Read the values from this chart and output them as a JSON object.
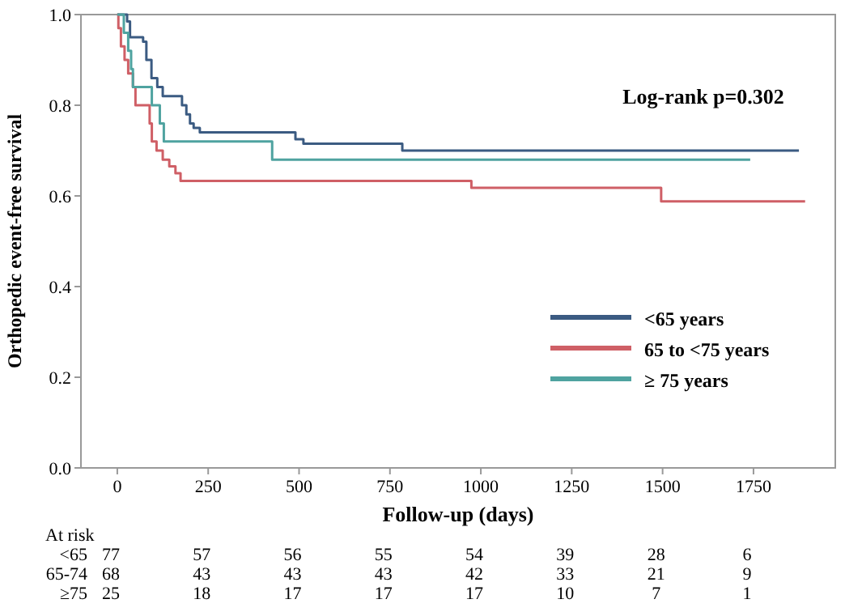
{
  "chart_data": {
    "type": "step",
    "xlabel": "Follow-up (days)",
    "ylabel": "Orthopedic event-free survival",
    "xlim": [
      -100,
      1975
    ],
    "ylim": [
      0,
      1
    ],
    "xticks": [
      0,
      250,
      500,
      750,
      1000,
      1250,
      1500,
      1750
    ],
    "yticks": [
      {
        "value": 0,
        "label": "0.0"
      },
      {
        "value": 0.2,
        "label": "0.2"
      },
      {
        "value": 0.4,
        "label": "0.4"
      },
      {
        "value": 0.6,
        "label": "0.6"
      },
      {
        "value": 0.8,
        "label": "0.8"
      },
      {
        "value": 1,
        "label": "1.0"
      }
    ],
    "legend": "bottom right",
    "grid": false,
    "series": [
      {
        "name": "<65 years",
        "color": "#3b5b82",
        "x": [
          0,
          21,
          27,
          35,
          71,
          80,
          94,
          110,
          125,
          178,
          190,
          200,
          210,
          227,
          490,
          512,
          784,
          1875
        ],
        "values": [
          1,
          1,
          0.985,
          0.95,
          0.94,
          0.9,
          0.86,
          0.84,
          0.82,
          0.8,
          0.78,
          0.76,
          0.75,
          0.74,
          0.725,
          0.715,
          0.7,
          0.7
        ]
      },
      {
        "name": "65 to <75 years",
        "color": "#cf5f66",
        "x": [
          0,
          3,
          10,
          20,
          30,
          43,
          50,
          89,
          95,
          108,
          125,
          143,
          160,
          174,
          974,
          1496,
          1892
        ],
        "values": [
          1,
          0.97,
          0.93,
          0.9,
          0.87,
          0.84,
          0.8,
          0.76,
          0.72,
          0.7,
          0.68,
          0.665,
          0.65,
          0.633,
          0.618,
          0.588,
          0.588
        ]
      },
      {
        "name": "≥ 75 years",
        "color": "#4fa3a0",
        "x": [
          0,
          18,
          30,
          38,
          43,
          95,
          117,
          128,
          426,
          1741
        ],
        "values": [
          1,
          0.96,
          0.92,
          0.88,
          0.84,
          0.8,
          0.76,
          0.72,
          0.68,
          0.68
        ]
      }
    ],
    "annotations": [
      "Log-rank p=0.302",
      "At risk",
      "<65",
      "77",
      "57",
      "56",
      "55",
      "54",
      "39",
      "28",
      "6",
      "65-74",
      "68",
      "43",
      "43",
      "43",
      "42",
      "33",
      "21",
      "9",
      "≥75",
      "25",
      "18",
      "17",
      "17",
      "17",
      "10",
      "7",
      "1"
    ]
  }
}
